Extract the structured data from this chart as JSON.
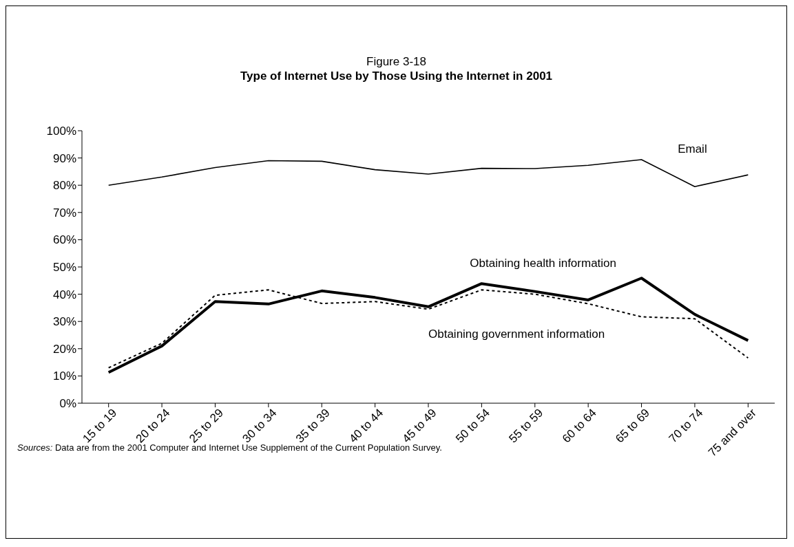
{
  "chart_data": {
    "type": "line",
    "title": "Figure 3-18",
    "subtitle": "Type of Internet Use by Those Using the Internet in 2001",
    "categories": [
      "15 to 19",
      "20 to 24",
      "25 to 29",
      "30 to 34",
      "35 to 39",
      "40 to 44",
      "45 to 49",
      "50 to 54",
      "55 to 59",
      "60 to 64",
      "65 to 69",
      "70 to 74",
      "75 and over"
    ],
    "series": [
      {
        "name": "Email",
        "color": "#000000",
        "line_style": "solid",
        "values": [
          80,
          83,
          86.5,
          89,
          88.8,
          85.7,
          84.1,
          86.2,
          86.1,
          87.3,
          89.4,
          79.5,
          83.8
        ]
      },
      {
        "name": "Obtaining health information",
        "color": "#000000",
        "line_style": "solid",
        "values": [
          11.3,
          21,
          37.3,
          36.4,
          41.2,
          38.8,
          35.4,
          43.9,
          41,
          37.9,
          45.9,
          32.6,
          23
        ]
      },
      {
        "name": "Obtaining government information",
        "color": "#000000",
        "line_style": "dashed",
        "values": [
          13,
          22,
          39.6,
          41.6,
          36.6,
          37.3,
          34.5,
          41.6,
          40,
          36.5,
          31.7,
          31,
          16.6
        ]
      }
    ],
    "ylim": [
      0,
      100
    ],
    "yticks": [
      {
        "value": 0,
        "label": "0%"
      },
      {
        "value": 10,
        "label": "10%"
      },
      {
        "value": 20,
        "label": "20%"
      },
      {
        "value": 30,
        "label": "30%"
      },
      {
        "value": 40,
        "label": "40%"
      },
      {
        "value": 50,
        "label": "50%"
      },
      {
        "value": 60,
        "label": "60%"
      },
      {
        "value": 70,
        "label": "70%"
      },
      {
        "value": 80,
        "label": "80%"
      },
      {
        "value": 90,
        "label": "90%"
      },
      {
        "value": 100,
        "label": "100%"
      }
    ],
    "grid": false,
    "legend": false,
    "marker": "none",
    "annotations": [
      "Sources: Data are from the 2001 Computer and Internet Use Supplement of the Current Population Survey."
    ]
  }
}
